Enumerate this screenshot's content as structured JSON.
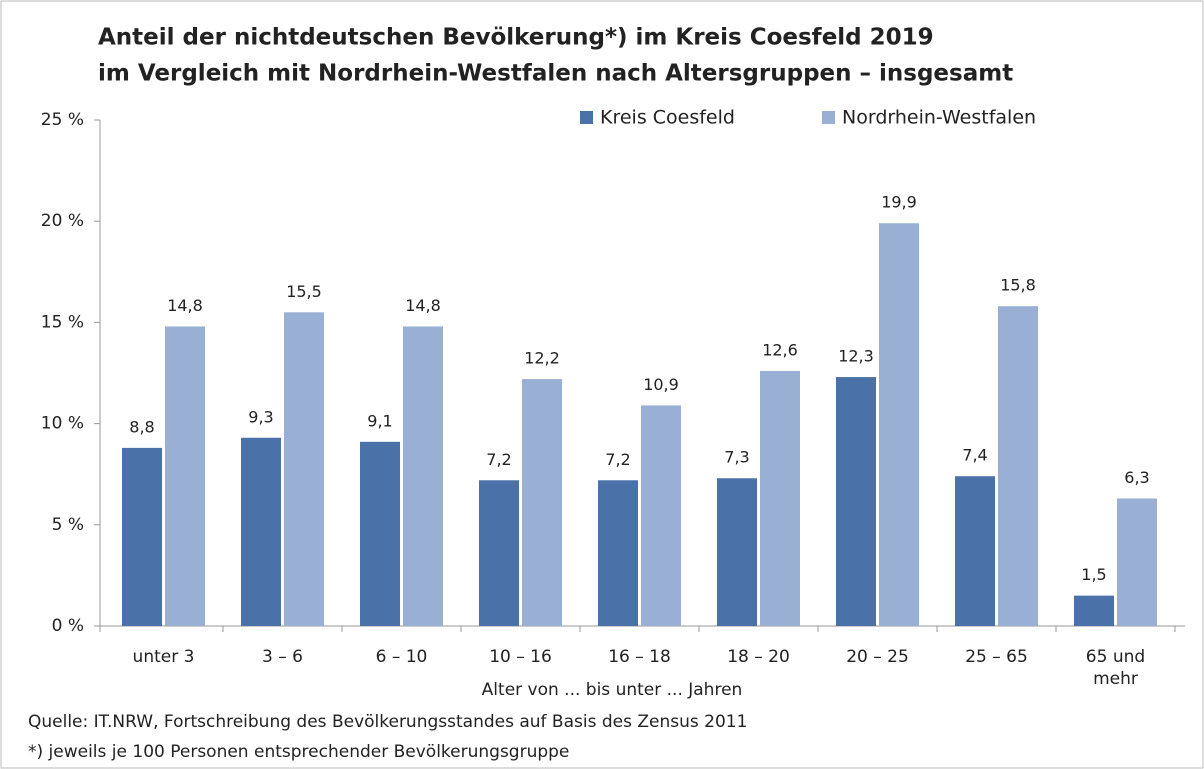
{
  "chart_data": {
    "type": "bar",
    "title": [
      "Anteil der nichtdeutschen Bevölkerung*) im Kreis Coesfeld 2019",
      "im Vergleich mit Nordrhein-Westfalen nach Altersgruppen – insgesamt"
    ],
    "x_label": "Alter von ... bis unter ... Jahren",
    "notes": [
      "Quelle: IT.NRW, Fortschreibung des Bevölkerungsstandes auf Basis des Zensus 2011",
      "*) jeweils je 100 Personen entsprechender Bevölkerungsgruppe"
    ],
    "categories": [
      "unter 3",
      "3 –  6",
      "6 – 10",
      "10 – 16",
      "16 – 18",
      "18 – 20",
      "20 – 25",
      "25 – 65",
      "65 und mehr"
    ],
    "series": [
      {
        "name": "Kreis Coesfeld",
        "color": "#4a72a8",
        "values": [
          8.8,
          9.3,
          9.1,
          7.2,
          7.2,
          7.3,
          12.3,
          7.4,
          1.5
        ],
        "value_labels": [
          "8,8",
          "9,3",
          "9,1",
          "7,2",
          "7,2",
          "7,3",
          "12,3",
          "7,4",
          "1,5"
        ]
      },
      {
        "name": "Nordrhein-Westfalen",
        "color": "#9aafd4",
        "values": [
          14.8,
          15.5,
          14.8,
          12.2,
          10.9,
          12.6,
          19.9,
          15.8,
          6.3
        ],
        "value_labels": [
          "14,8",
          "15,5",
          "14,8",
          "12,2",
          "10,9",
          "12,6",
          "19,9",
          "15,8",
          "6,3"
        ]
      }
    ],
    "ylim": [
      0,
      25
    ],
    "yticks": [
      {
        "value": 0,
        "label": "0 %"
      },
      {
        "value": 5,
        "label": "5 %"
      },
      {
        "value": 10,
        "label": "10 %"
      },
      {
        "value": 15,
        "label": "15 %"
      },
      {
        "value": 20,
        "label": "20 %"
      },
      {
        "value": 25,
        "label": "25 %"
      }
    ],
    "legend": "top-right",
    "grid": false
  }
}
